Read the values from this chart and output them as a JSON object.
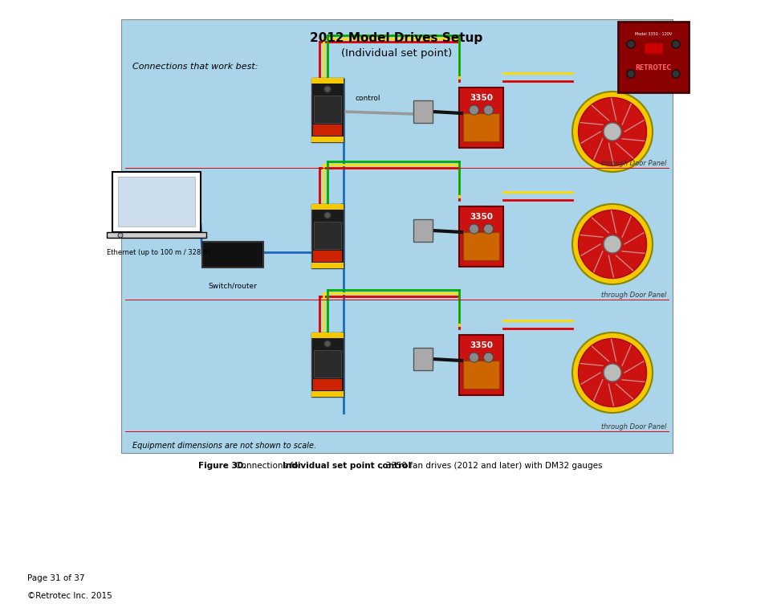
{
  "title": "2012 Model Drives Setup",
  "subtitle": "(Individual set point)",
  "connections_text": "Connections that work best:",
  "equipment_note": "Equipment dimensions are not shown to scale.",
  "through_door_panel": "through Door Panel",
  "label_3350": "3350",
  "label_control": "control",
  "label_ethernet": "Ethernet (up to 100 m / 328 ft)",
  "label_switch": "Switch/router",
  "caption_fig": "Figure 30.",
  "caption_conn": " Connections for ",
  "caption_bold2": "Individual set point control",
  "caption_rest": ", 3350 fan drives (2012 and later) with DM32 gauges",
  "page_line1": "Page 31 of 37",
  "page_line2": "©Retrotec Inc. 2015",
  "white_bg": "#ffffff",
  "diag_bg": "#aad4ea",
  "fan_yellow": "#f5c800",
  "fan_red": "#cc1111",
  "wire_red": "#dd0000",
  "wire_yellow": "#ffdd00",
  "wire_green": "#00aa00",
  "wire_blue": "#1a6abf",
  "wire_gray": "#999999",
  "device_black": "#1a1a1a",
  "thumb_red": "#8b0000"
}
